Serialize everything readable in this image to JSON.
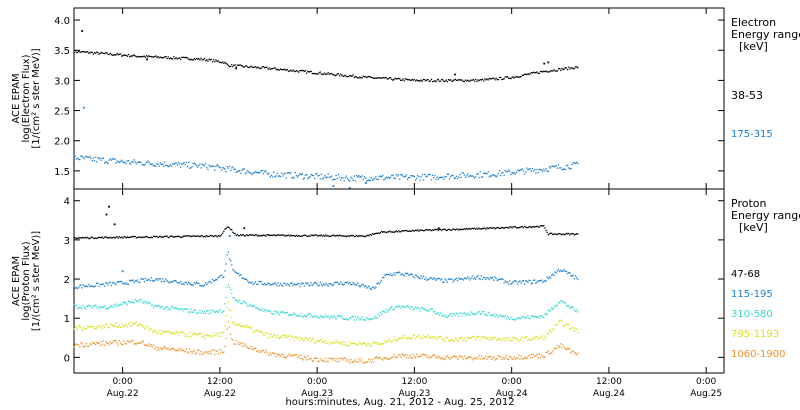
{
  "chart_data": {
    "type": "scatter",
    "xlabel": "hours:minutes, Aug. 21, 2012 - Aug. 25, 2012",
    "x_ticks": [
      {
        "time": "0:00",
        "date": "Aug.22",
        "hours": 6
      },
      {
        "time": "12:00",
        "date": "Aug.22",
        "hours": 18
      },
      {
        "time": "0:00",
        "date": "Aug.23",
        "hours": 30
      },
      {
        "time": "12:00",
        "date": "Aug.23",
        "hours": 42
      },
      {
        "time": "0:00",
        "date": "Aug.24",
        "hours": 54
      },
      {
        "time": "12:00",
        "date": "Aug.24",
        "hours": 66
      },
      {
        "time": "0:00",
        "date": "Aug.25",
        "hours": 78
      }
    ],
    "x_range_hours": [
      0,
      80.2
    ],
    "data_end_hours": 62.2,
    "panels": [
      {
        "id": "electron",
        "ylabel": [
          "ACE EPAM",
          "log(Electron Flux)",
          "[1/(cm² s ster MeV)]"
        ],
        "ylim": [
          1.2,
          4.2
        ],
        "yticks": [
          1.5,
          2.0,
          2.5,
          3.0,
          3.5,
          4.0
        ],
        "yticklabels": [
          "1.5",
          "2.0",
          "2.5",
          "3.0",
          "3.5",
          "4.0"
        ],
        "legend_title": [
          "Electron",
          "Energy range",
          "[keV]"
        ],
        "series": [
          {
            "name": "38-53",
            "color": "#000000",
            "noise": 0.02,
            "profile": [
              [
                0,
                3.48
              ],
              [
                8,
                3.4
              ],
              [
                16,
                3.35
              ],
              [
                18.5,
                3.3
              ],
              [
                19,
                3.25
              ],
              [
                24,
                3.2
              ],
              [
                32,
                3.1
              ],
              [
                36,
                3.05
              ],
              [
                42,
                3.0
              ],
              [
                50,
                3.0
              ],
              [
                54,
                3.05
              ],
              [
                56,
                3.1
              ],
              [
                58,
                3.15
              ],
              [
                61,
                3.2
              ],
              [
                62.2,
                3.22
              ]
            ],
            "spikes": [
              [
                1,
                3.82
              ],
              [
                9,
                3.35
              ],
              [
                20,
                3.2
              ],
              [
                47,
                3.1
              ],
              [
                58,
                3.28
              ],
              [
                58.5,
                3.3
              ]
            ]
          },
          {
            "name": "175-315",
            "color": "#1a7fd0",
            "noise": 0.05,
            "profile": [
              [
                0,
                1.72
              ],
              [
                6,
                1.65
              ],
              [
                16,
                1.58
              ],
              [
                24,
                1.45
              ],
              [
                28,
                1.42
              ],
              [
                34,
                1.38
              ],
              [
                44,
                1.4
              ],
              [
                52,
                1.45
              ],
              [
                58,
                1.53
              ],
              [
                62.2,
                1.6
              ]
            ],
            "spikes": [
              [
                1.2,
                2.55
              ],
              [
                32,
                1.25
              ],
              [
                34,
                1.22
              ],
              [
                36,
                1.3
              ]
            ]
          }
        ]
      },
      {
        "id": "proton",
        "ylabel": [
          "ACE EPAM",
          "log(Proton Flux)",
          "[1/(cm² s ster MeV)]"
        ],
        "ylim": [
          -0.4,
          4.3
        ],
        "yticks": [
          0,
          1,
          2,
          3,
          4
        ],
        "yticklabels": [
          "0",
          "1",
          "2",
          "3",
          "4"
        ],
        "legend_title": [
          "Proton",
          "Energy range",
          "[keV]"
        ],
        "series": [
          {
            "name": "47-68",
            "color": "#000000",
            "noise": 0.02,
            "profile": [
              [
                0,
                3.05
              ],
              [
                18,
                3.1
              ],
              [
                19,
                3.35
              ],
              [
                20,
                3.12
              ],
              [
                36,
                3.1
              ],
              [
                38,
                3.2
              ],
              [
                44,
                3.25
              ],
              [
                52,
                3.3
              ],
              [
                58,
                3.35
              ],
              [
                58.5,
                3.15
              ],
              [
                62.2,
                3.15
              ]
            ],
            "spikes": [
              [
                4,
                3.65
              ],
              [
                4.3,
                3.85
              ],
              [
                5,
                3.4
              ],
              [
                21,
                3.3
              ],
              [
                45,
                3.3
              ]
            ]
          },
          {
            "name": "115-195",
            "color": "#1a7fd0",
            "noise": 0.05,
            "profile": [
              [
                0,
                1.8
              ],
              [
                6,
                1.9
              ],
              [
                10,
                2.0
              ],
              [
                16,
                1.85
              ],
              [
                18.5,
                2.1
              ],
              [
                19,
                2.7
              ],
              [
                19.6,
                2.2
              ],
              [
                22,
                1.9
              ],
              [
                28,
                1.85
              ],
              [
                34,
                1.9
              ],
              [
                37,
                1.75
              ],
              [
                38.5,
                2.1
              ],
              [
                40,
                2.15
              ],
              [
                44,
                2.0
              ],
              [
                46,
                1.95
              ],
              [
                50,
                2.05
              ],
              [
                52,
                2.0
              ],
              [
                54,
                1.9
              ],
              [
                58,
                1.95
              ],
              [
                60,
                2.25
              ],
              [
                62.2,
                2.0
              ]
            ],
            "spikes": [
              [
                6,
                2.2
              ],
              [
                19.2,
                3.1
              ]
            ]
          },
          {
            "name": "310-580",
            "color": "#2fd7cf",
            "noise": 0.05,
            "profile": [
              [
                0,
                1.3
              ],
              [
                4,
                1.28
              ],
              [
                8,
                1.45
              ],
              [
                10,
                1.3
              ],
              [
                16,
                1.15
              ],
              [
                18.5,
                1.2
              ],
              [
                19,
                1.9
              ],
              [
                19.6,
                1.5
              ],
              [
                24,
                1.15
              ],
              [
                34,
                1.0
              ],
              [
                37,
                1.0
              ],
              [
                38.5,
                1.2
              ],
              [
                40,
                1.3
              ],
              [
                44,
                1.2
              ],
              [
                46,
                1.05
              ],
              [
                50,
                1.15
              ],
              [
                54,
                1.0
              ],
              [
                58,
                1.05
              ],
              [
                60,
                1.45
              ],
              [
                62.2,
                1.15
              ]
            ],
            "spikes": []
          },
          {
            "name": "795-1193",
            "color": "#d6e11a",
            "noise": 0.06,
            "profile": [
              [
                0,
                0.75
              ],
              [
                8,
                0.85
              ],
              [
                10,
                0.65
              ],
              [
                16,
                0.55
              ],
              [
                18.5,
                0.6
              ],
              [
                19,
                1.4
              ],
              [
                19.6,
                0.9
              ],
              [
                24,
                0.55
              ],
              [
                34,
                0.35
              ],
              [
                38,
                0.35
              ],
              [
                40,
                0.5
              ],
              [
                44,
                0.55
              ],
              [
                46,
                0.45
              ],
              [
                50,
                0.5
              ],
              [
                54,
                0.45
              ],
              [
                58,
                0.5
              ],
              [
                60,
                0.9
              ],
              [
                62.2,
                0.65
              ]
            ],
            "spikes": []
          },
          {
            "name": "1060-1900",
            "color": "#f0902a",
            "noise": 0.06,
            "profile": [
              [
                0,
                0.32
              ],
              [
                8,
                0.4
              ],
              [
                10,
                0.25
              ],
              [
                16,
                0.12
              ],
              [
                18.5,
                0.15
              ],
              [
                19,
                0.9
              ],
              [
                19.6,
                0.4
              ],
              [
                24,
                0.1
              ],
              [
                30,
                -0.05
              ],
              [
                36,
                -0.1
              ],
              [
                40,
                0.05
              ],
              [
                46,
                0.0
              ],
              [
                52,
                -0.02
              ],
              [
                58,
                0.05
              ],
              [
                60,
                0.3
              ],
              [
                62.2,
                0.05
              ]
            ],
            "spikes": []
          }
        ]
      }
    ]
  }
}
